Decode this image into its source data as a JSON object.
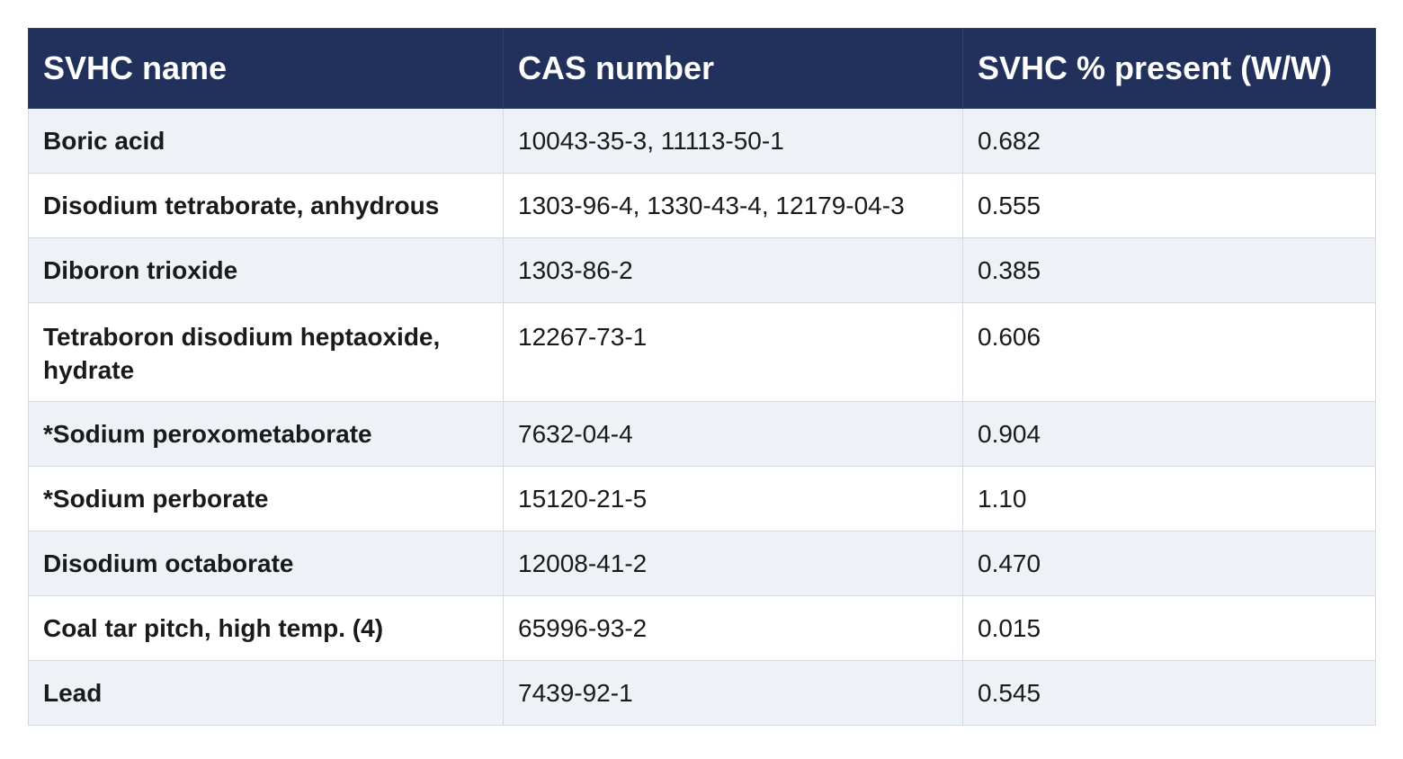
{
  "table": {
    "headers": [
      "SVHC name",
      "CAS number",
      "SVHC % present  (W/W)"
    ],
    "rows": [
      {
        "name": "Boric acid",
        "cas": "10043-35-3, 11113-50-1",
        "pct": "0.682"
      },
      {
        "name": "Disodium tetraborate, anhydrous",
        "cas": "1303-96-4, 1330-43-4, 12179-04-3",
        "pct": "0.555"
      },
      {
        "name": "Diboron trioxide",
        "cas": "1303-86-2",
        "pct": "0.385"
      },
      {
        "name": "Tetraboron disodium heptaoxide, hydrate",
        "cas": "12267-73-1",
        "pct": "0.606"
      },
      {
        "name": "*Sodium peroxometaborate",
        "cas": "7632-04-4",
        "pct": "0.904"
      },
      {
        "name": "*Sodium perborate",
        "cas": "15120-21-5",
        "pct": "1.10"
      },
      {
        "name": "Disodium octaborate",
        "cas": "12008-41-2",
        "pct": "0.470"
      },
      {
        "name": "Coal tar pitch, high temp. (4)",
        "cas": "65996-93-2",
        "pct": "0.015"
      },
      {
        "name": "Lead",
        "cas": "7439-92-1",
        "pct": "0.545"
      }
    ]
  },
  "colors": {
    "header_bg": "#22315c",
    "header_text": "#ffffff",
    "row_alt_bg": "#eef1f6",
    "border": "#d5d9e0"
  }
}
